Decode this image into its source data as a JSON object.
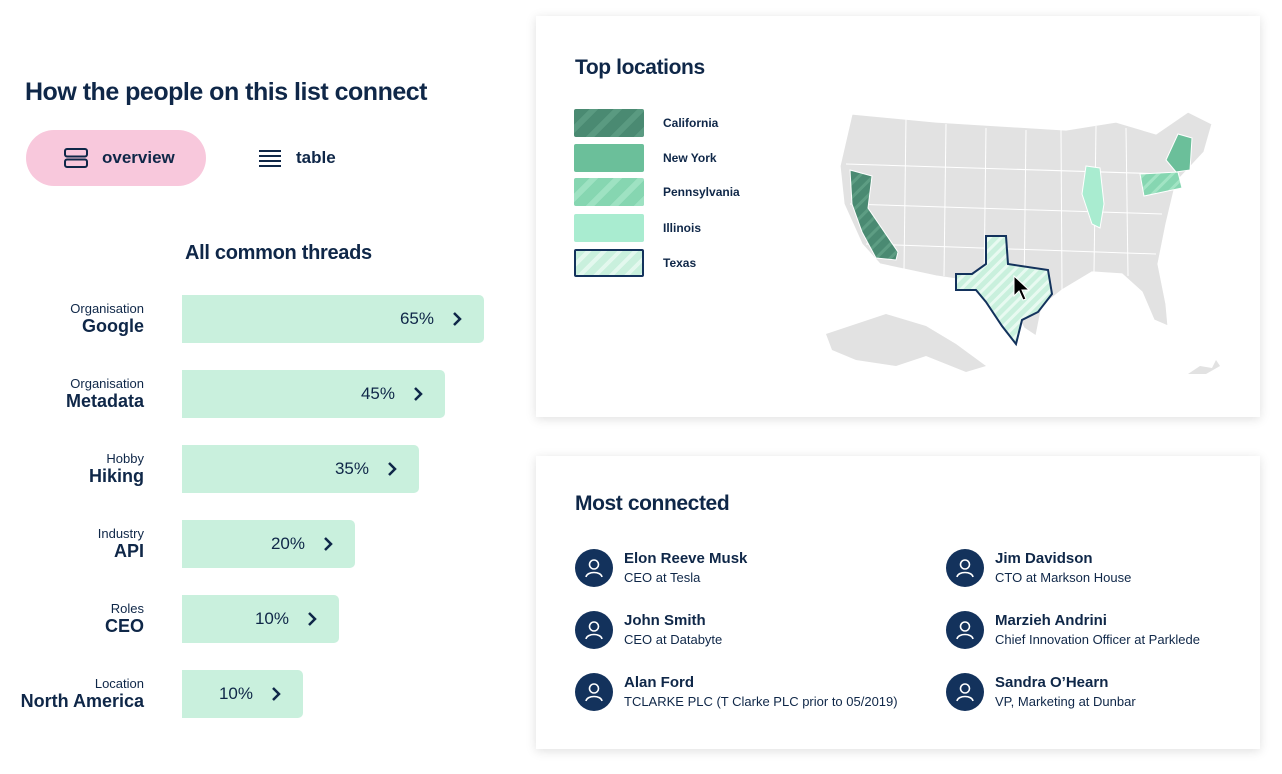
{
  "heading": "How the people on this list connect",
  "view_toggle": {
    "overview_label": "overview",
    "table_label": "table",
    "active": "overview"
  },
  "threads": {
    "title": "All common threads",
    "items": [
      {
        "category": "Organisation",
        "name": "Google",
        "percent_label": "65%",
        "percent": 65
      },
      {
        "category": "Organisation",
        "name": "Metadata",
        "percent_label": "45%",
        "percent": 45
      },
      {
        "category": "Hobby",
        "name": "Hiking",
        "percent_label": "35%",
        "percent": 35
      },
      {
        "category": "Industry",
        "name": "API",
        "percent_label": "20%",
        "percent": 20
      },
      {
        "category": "Roles",
        "name": "CEO",
        "percent_label": "10%",
        "percent": 10
      },
      {
        "category": "Location",
        "name": "North America",
        "percent_label": "10%",
        "percent": 10
      }
    ]
  },
  "top_locations": {
    "title": "Top locations",
    "legend": [
      {
        "label": "California",
        "color": "#4a8a72",
        "pattern": "striped"
      },
      {
        "label": "New York",
        "color": "#6bbf9a",
        "pattern": "solid"
      },
      {
        "label": "Pennsylvania",
        "color": "#86d6b1",
        "pattern": "striped"
      },
      {
        "label": "Illinois",
        "color": "#a9ecd0",
        "pattern": "solid"
      },
      {
        "label": "Texas",
        "color": "#c9f0dd",
        "pattern": "striped",
        "selected": true
      }
    ]
  },
  "most_connected": {
    "title": "Most connected",
    "people": [
      {
        "name": "Elon Reeve Musk",
        "role": "CEO at Tesla"
      },
      {
        "name": "Jim Davidson",
        "role": "CTO at Markson House"
      },
      {
        "name": "John Smith",
        "role": "CEO at Databyte"
      },
      {
        "name": "Marzieh Andrini",
        "role": "Chief Innovation Officer at Parklede"
      },
      {
        "name": "Alan Ford",
        "role": "TCLARKE PLC (T Clarke PLC prior to 05/2019)"
      },
      {
        "name": "Sandra O’Hearn",
        "role": "VP, Marketing at Dunbar"
      }
    ]
  },
  "colors": {
    "navy": "#0f2748",
    "bar_fill": "#c9f0dd",
    "pill_active": "#f8c8dc",
    "avatar": "#13325c",
    "map_land": "#e2e2e2"
  }
}
